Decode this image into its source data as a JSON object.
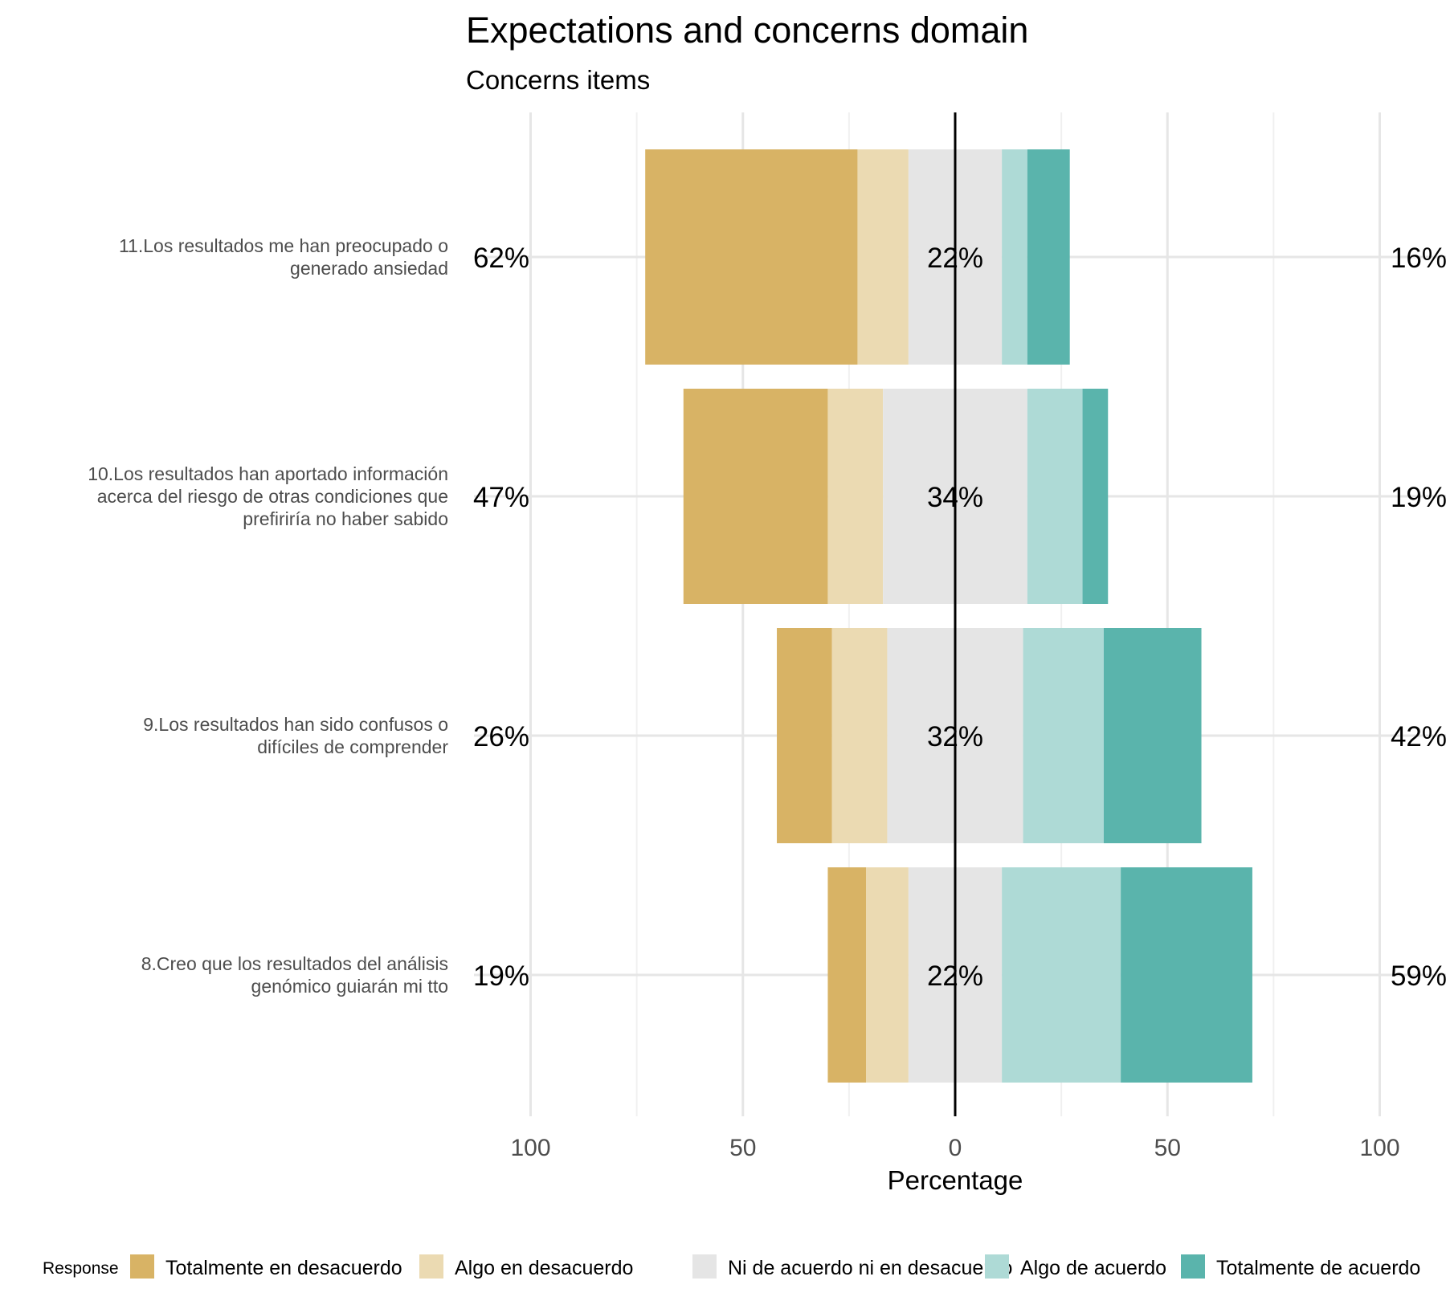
{
  "chart_data": {
    "type": "bar",
    "orientation": "horizontal",
    "stacked": "diverging",
    "title": "Expectations and concerns domain",
    "subtitle": "Concerns items",
    "xlabel": "Percentage",
    "xlim": [
      -100,
      100
    ],
    "xticks": [
      -100,
      -50,
      0,
      50,
      100
    ],
    "xtick_labels": [
      "100",
      "50",
      "0",
      "50",
      "100"
    ],
    "grid": true,
    "legend_title": "Response",
    "legend_position": "bottom",
    "categories": [
      "11.Los resultados me han preocupado o generado ansiedad",
      "10.Los resultados han aportado información acerca del riesgo de otras condiciones que prefiriría no haber sabido",
      "9.Los resultados han sido confusos o difíciles de comprender",
      "8.Creo que los resultados del análisis genómico guiarán mi tto"
    ],
    "category_lines": [
      [
        "11.Los resultados me han preocupado o",
        "generado ansiedad"
      ],
      [
        "10.Los resultados han aportado información",
        "acerca del riesgo de otras condiciones que",
        "prefiriría no haber sabido"
      ],
      [
        "9.Los resultados han sido confusos o",
        "difíciles de comprender"
      ],
      [
        "8.Creo que los resultados del análisis",
        "genómico guiarán mi tto"
      ]
    ],
    "series": [
      {
        "name": "Totalmente en desacuerdo",
        "color": "#D8B365",
        "values": [
          50,
          34,
          13,
          9
        ]
      },
      {
        "name": "Algo en desacuerdo",
        "color": "#EBDAB2",
        "values": [
          12,
          13,
          13,
          10
        ]
      },
      {
        "name": "Ni de acuerdo ni en desacuerdo",
        "color": "#E5E5E5",
        "values": [
          22,
          34,
          32,
          22
        ]
      },
      {
        "name": "Algo de acuerdo",
        "color": "#AEDAD6",
        "values": [
          6,
          13,
          19,
          28
        ]
      },
      {
        "name": "Totalmente de acuerdo",
        "color": "#5AB4AC",
        "values": [
          10,
          6,
          23,
          31
        ]
      }
    ],
    "left_labels": [
      "62%",
      "47%",
      "26%",
      "19%"
    ],
    "center_labels": [
      "22%",
      "34%",
      "32%",
      "22%"
    ],
    "right_labels": [
      "16%",
      "19%",
      "42%",
      "59%"
    ]
  }
}
